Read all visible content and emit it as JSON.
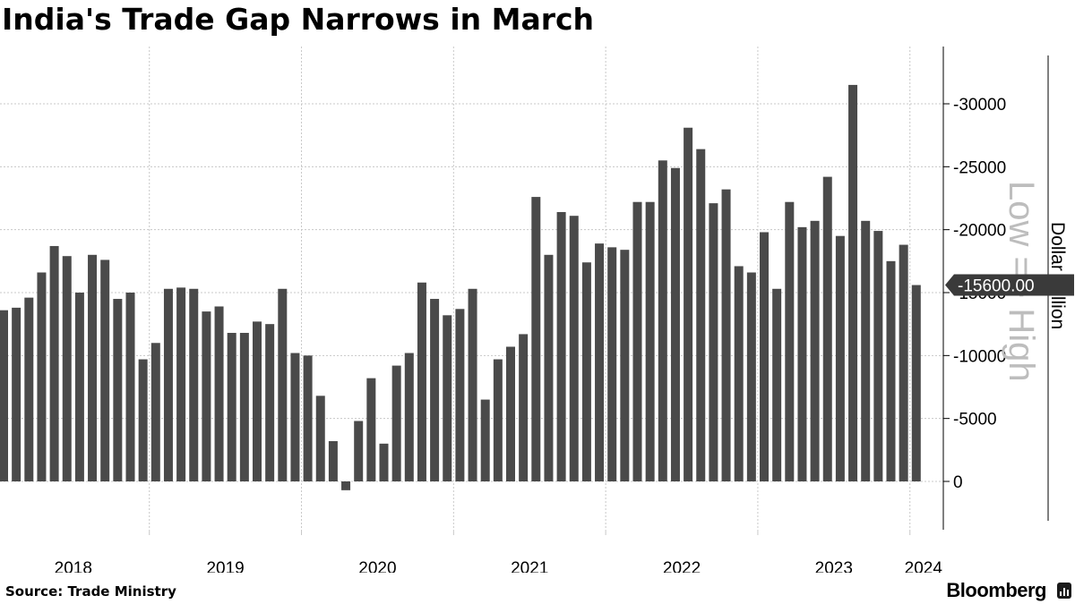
{
  "title": "India's Trade Gap Narrows in March",
  "source": "Source: Trade Ministry",
  "brand": "Bloomberg",
  "brand_icon": "bloomberg-bars-icon",
  "colors": {
    "bar": "#4a4a4a",
    "grid": "#c8c8c8",
    "axis": "#000000",
    "watermark": "#bdbdbd",
    "label_bg": "#3a3a3a"
  },
  "chart_data": {
    "type": "bar",
    "title": "India's Trade Gap Narrows in March",
    "ylabel": "Dollar Million",
    "y_axis_inverted": true,
    "ylim": [
      -2500,
      33500
    ],
    "yticks": [
      0,
      -5000,
      -10000,
      -15000,
      -20000,
      -25000,
      -30000
    ],
    "ytick_labels": [
      "0",
      "-5000",
      "-10000",
      "-15000",
      "-20000",
      "-25000",
      "-30000"
    ],
    "watermark": "Low => High",
    "last_value_label": "-15600.00",
    "x_labels": [
      "2018",
      "2019",
      "2020",
      "2021",
      "2022",
      "2023",
      "2024"
    ],
    "start": "2018-01",
    "values": [
      -13600,
      -13800,
      -14600,
      -16600,
      -18700,
      -17900,
      -15000,
      -18000,
      -17600,
      -14500,
      -15000,
      -9700,
      -11000,
      -15300,
      -15400,
      -15300,
      -13500,
      -13900,
      -11800,
      -11800,
      -12700,
      -12500,
      -15300,
      -10200,
      -10000,
      -6800,
      -3200,
      700,
      -4800,
      -8200,
      -3000,
      -9200,
      -10200,
      -15800,
      -14500,
      -13200,
      -13700,
      -15300,
      -6500,
      -9700,
      -10700,
      -11700,
      -22600,
      -18000,
      -21400,
      -21100,
      -17400,
      -18900,
      -18600,
      -18400,
      -22200,
      -22200,
      -25500,
      -24900,
      -28100,
      -26400,
      -22100,
      -23200,
      -17100,
      -16600,
      -19800,
      -15300,
      -22200,
      -20200,
      -20700,
      -24200,
      -19500,
      -31500,
      -20700,
      -19900,
      -17500,
      -18800,
      -15600
    ]
  }
}
